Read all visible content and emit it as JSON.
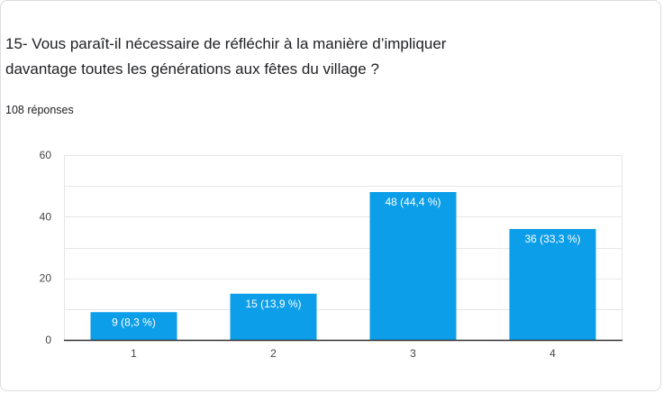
{
  "question": {
    "title_line1": "15- Vous paraît-il nécessaire de réfléchir à la manière d’impliquer",
    "title_line2": "davantage toutes les générations aux fêtes du village ?",
    "responses": "108 réponses"
  },
  "colors": {
    "bar": "#0c9ee8",
    "grid": "#e6e6e6",
    "axis": "#333333"
  },
  "chart_data": {
    "type": "bar",
    "categories": [
      "1",
      "2",
      "3",
      "4"
    ],
    "values": [
      9,
      15,
      48,
      36
    ],
    "data_labels": [
      "9 (8,3 %)",
      "15 (13,9 %)",
      "48 (44,4 %)",
      "36 (33,3 %)"
    ],
    "ylim": [
      0,
      60
    ],
    "yticks": [
      0,
      20,
      40,
      60
    ],
    "title": "",
    "xlabel": "",
    "ylabel": "",
    "grid": true
  }
}
